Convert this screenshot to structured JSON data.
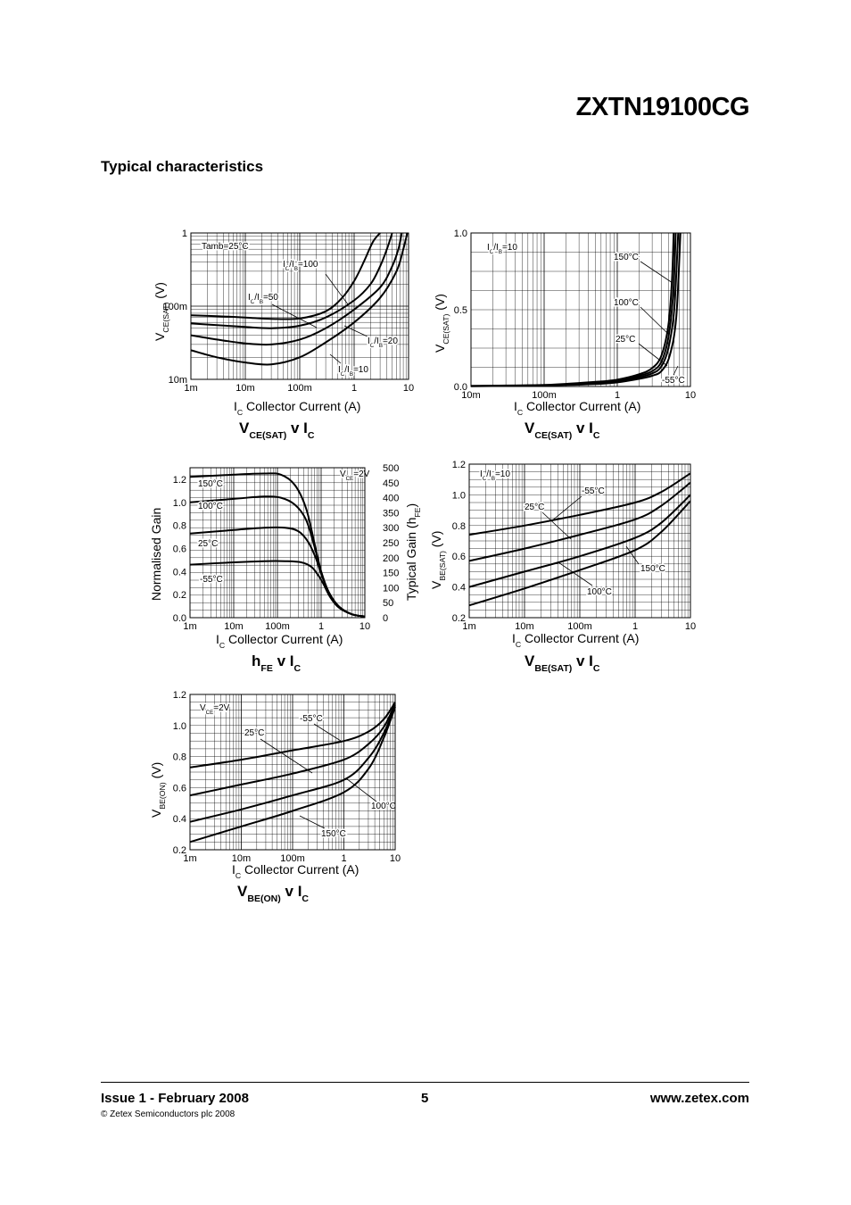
{
  "header": {
    "title": "ZXTN19100CG"
  },
  "section": {
    "title": "Typical characteristics"
  },
  "footer": {
    "issue": "Issue 1 - February 2008",
    "page": "5",
    "website": "www.zetex.com",
    "copyright": "© Zetex Semiconductors plc 2008"
  },
  "chart_data": [
    {
      "id": "vcesat_log",
      "type": "line",
      "caption": "VCE(SAT) v IC",
      "xlabel": "IC Collector Current (A)",
      "ylabel": "VCE(SAT) (V)",
      "x_scale": "log",
      "y_scale": "log",
      "xlim": [
        0.001,
        10
      ],
      "ylim": [
        0.01,
        1
      ],
      "x_ticks": [
        "1m",
        "10m",
        "100m",
        "1",
        "10"
      ],
      "y_ticks": [
        "10m",
        "100m",
        "1"
      ],
      "grid": true,
      "annotations": [
        "Tamb=25°C"
      ],
      "series": [
        {
          "name": "IC/IB=100",
          "x": [
            0.001,
            0.003,
            0.01,
            0.03,
            0.1,
            0.3,
            0.6,
            1,
            1.5,
            2.2,
            3
          ],
          "y": [
            0.075,
            0.073,
            0.07,
            0.067,
            0.068,
            0.085,
            0.13,
            0.22,
            0.4,
            0.75,
            1.0
          ]
        },
        {
          "name": "IC/IB=50",
          "x": [
            0.001,
            0.003,
            0.01,
            0.03,
            0.1,
            0.3,
            1,
            2,
            3,
            4,
            5
          ],
          "y": [
            0.058,
            0.055,
            0.052,
            0.05,
            0.054,
            0.07,
            0.12,
            0.2,
            0.35,
            0.6,
            1.0
          ]
        },
        {
          "name": "IC/IB=20",
          "x": [
            0.001,
            0.003,
            0.01,
            0.03,
            0.1,
            0.3,
            1,
            3,
            5,
            6.5,
            7.5
          ],
          "y": [
            0.04,
            0.035,
            0.031,
            0.03,
            0.035,
            0.05,
            0.09,
            0.18,
            0.35,
            0.6,
            1.0
          ]
        },
        {
          "name": "IC/IB=10",
          "x": [
            0.001,
            0.003,
            0.01,
            0.03,
            0.1,
            0.3,
            1,
            3,
            6,
            8,
            9.5
          ],
          "y": [
            0.025,
            0.02,
            0.017,
            0.016,
            0.02,
            0.032,
            0.06,
            0.13,
            0.3,
            0.6,
            1.0
          ]
        }
      ]
    },
    {
      "id": "vcesat_lin",
      "type": "line",
      "caption": "VCE(SAT) v IC",
      "xlabel": "IC Collector Current (A)",
      "ylabel": "VCE(SAT) (V)",
      "x_scale": "log",
      "y_scale": "linear",
      "xlim": [
        0.01,
        10
      ],
      "ylim": [
        0,
        1
      ],
      "x_ticks": [
        "10m",
        "100m",
        "1",
        "10"
      ],
      "y_ticks": [
        "0.0",
        "0.5",
        "1.0"
      ],
      "grid": true,
      "annotations": [
        "IC/IB=10"
      ],
      "series": [
        {
          "name": "150°C",
          "x": [
            0.01,
            0.1,
            0.5,
            1,
            2,
            3,
            4,
            5,
            5.6,
            5.9
          ],
          "y": [
            0.004,
            0.01,
            0.03,
            0.045,
            0.08,
            0.12,
            0.2,
            0.4,
            0.7,
            1.0
          ]
        },
        {
          "name": "100°C",
          "x": [
            0.01,
            0.1,
            0.5,
            1,
            2,
            3,
            4,
            5,
            5.8,
            6.3
          ],
          "y": [
            0.003,
            0.009,
            0.025,
            0.04,
            0.07,
            0.1,
            0.16,
            0.32,
            0.6,
            1.0
          ]
        },
        {
          "name": "25°C",
          "x": [
            0.01,
            0.1,
            0.5,
            1,
            2,
            3,
            4,
            5,
            6,
            6.8
          ],
          "y": [
            0.003,
            0.008,
            0.02,
            0.033,
            0.06,
            0.085,
            0.13,
            0.25,
            0.5,
            1.0
          ]
        },
        {
          "name": "-55°C",
          "x": [
            0.01,
            0.1,
            0.5,
            1,
            2,
            3,
            4,
            5.2,
            6.4,
            7.3
          ],
          "y": [
            0.002,
            0.007,
            0.016,
            0.027,
            0.05,
            0.07,
            0.1,
            0.2,
            0.45,
            1.0
          ]
        }
      ]
    },
    {
      "id": "hfe",
      "type": "line",
      "caption": "hFE v IC",
      "xlabel": "IC Collector Current (A)",
      "ylabel": "Normalised Gain",
      "y2label": "Typical Gain (hFE)",
      "x_scale": "log",
      "y_scale": "linear",
      "xlim": [
        0.001,
        10
      ],
      "ylim": [
        0,
        1.3
      ],
      "y2lim": [
        0,
        500
      ],
      "x_ticks": [
        "1m",
        "10m",
        "100m",
        "1",
        "10"
      ],
      "y_ticks": [
        "0.0",
        "0.2",
        "0.4",
        "0.6",
        "0.8",
        "1.0",
        "1.2"
      ],
      "y2_ticks": [
        "0",
        "50",
        "100",
        "150",
        "200",
        "250",
        "300",
        "350",
        "400",
        "450",
        "500"
      ],
      "grid": true,
      "annotations": [
        "VCE=2V"
      ],
      "series": [
        {
          "name": "150°C",
          "x": [
            0.001,
            0.01,
            0.05,
            0.12,
            0.25,
            0.45,
            0.7,
            1,
            1.5,
            2.5,
            5,
            10
          ],
          "y": [
            1.22,
            1.24,
            1.25,
            1.24,
            1.15,
            0.95,
            0.65,
            0.4,
            0.22,
            0.1,
            0.03,
            0.01
          ]
        },
        {
          "name": "100°C",
          "x": [
            0.001,
            0.01,
            0.05,
            0.12,
            0.25,
            0.45,
            0.7,
            1,
            1.5,
            2.5,
            5,
            10
          ],
          "y": [
            1.0,
            1.03,
            1.05,
            1.04,
            0.98,
            0.85,
            0.62,
            0.4,
            0.22,
            0.1,
            0.03,
            0.01
          ]
        },
        {
          "name": "25°C",
          "x": [
            0.001,
            0.01,
            0.05,
            0.15,
            0.3,
            0.5,
            0.75,
            1,
            1.5,
            2.5,
            5,
            10
          ],
          "y": [
            0.73,
            0.76,
            0.78,
            0.78,
            0.75,
            0.66,
            0.52,
            0.38,
            0.22,
            0.1,
            0.03,
            0.01
          ]
        },
        {
          "name": "-55°C",
          "x": [
            0.001,
            0.01,
            0.05,
            0.15,
            0.35,
            0.6,
            0.85,
            1.1,
            1.6,
            2.5,
            5,
            10
          ],
          "y": [
            0.46,
            0.48,
            0.49,
            0.49,
            0.48,
            0.44,
            0.37,
            0.3,
            0.18,
            0.09,
            0.03,
            0.01
          ]
        }
      ]
    },
    {
      "id": "vbesat",
      "type": "line",
      "caption": "VBE(SAT) v IC",
      "xlabel": "IC Collector Current (A)",
      "ylabel": "VBE(SAT) (V)",
      "x_scale": "log",
      "y_scale": "linear",
      "xlim": [
        0.001,
        10
      ],
      "ylim": [
        0.2,
        1.2
      ],
      "x_ticks": [
        "1m",
        "10m",
        "100m",
        "1",
        "10"
      ],
      "y_ticks": [
        "0.2",
        "0.4",
        "0.6",
        "0.8",
        "1.0",
        "1.2"
      ],
      "grid": true,
      "annotations": [
        "IC/IB=10"
      ],
      "series": [
        {
          "name": "-55°C",
          "x": [
            0.001,
            0.01,
            0.1,
            1,
            3,
            10
          ],
          "y": [
            0.74,
            0.8,
            0.87,
            0.95,
            1.02,
            1.14
          ]
        },
        {
          "name": "25°C",
          "x": [
            0.001,
            0.01,
            0.1,
            1,
            3,
            10
          ],
          "y": [
            0.57,
            0.65,
            0.74,
            0.84,
            0.93,
            1.08
          ]
        },
        {
          "name": "100°C",
          "x": [
            0.001,
            0.01,
            0.1,
            1,
            3,
            10
          ],
          "y": [
            0.4,
            0.5,
            0.6,
            0.72,
            0.82,
            1.0
          ]
        },
        {
          "name": "150°C",
          "x": [
            0.001,
            0.01,
            0.1,
            1,
            3,
            10
          ],
          "y": [
            0.28,
            0.39,
            0.51,
            0.64,
            0.76,
            0.96
          ]
        }
      ]
    },
    {
      "id": "vbeon",
      "type": "line",
      "caption": "VBE(ON) v IC",
      "xlabel": "IC Collector Current (A)",
      "ylabel": "VBE(ON) (V)",
      "x_scale": "log",
      "y_scale": "linear",
      "xlim": [
        0.001,
        10
      ],
      "ylim": [
        0.2,
        1.2
      ],
      "x_ticks": [
        "1m",
        "10m",
        "100m",
        "1",
        "10"
      ],
      "y_ticks": [
        "0.2",
        "0.4",
        "0.6",
        "0.8",
        "1.0",
        "1.2"
      ],
      "grid": true,
      "annotations": [
        "VCE=2V"
      ],
      "series": [
        {
          "name": "-55°C",
          "x": [
            0.001,
            0.01,
            0.1,
            1,
            3,
            6,
            10
          ],
          "y": [
            0.73,
            0.78,
            0.84,
            0.9,
            0.96,
            1.04,
            1.15
          ]
        },
        {
          "name": "25°C",
          "x": [
            0.001,
            0.01,
            0.1,
            1,
            3,
            6,
            10
          ],
          "y": [
            0.55,
            0.62,
            0.69,
            0.78,
            0.88,
            0.99,
            1.14
          ]
        },
        {
          "name": "100°C",
          "x": [
            0.001,
            0.01,
            0.1,
            1,
            3,
            6,
            10
          ],
          "y": [
            0.38,
            0.46,
            0.55,
            0.65,
            0.79,
            0.95,
            1.13
          ]
        },
        {
          "name": "150°C",
          "x": [
            0.001,
            0.01,
            0.1,
            1,
            3,
            6,
            10
          ],
          "y": [
            0.25,
            0.35,
            0.45,
            0.57,
            0.72,
            0.92,
            1.12
          ]
        }
      ]
    }
  ]
}
